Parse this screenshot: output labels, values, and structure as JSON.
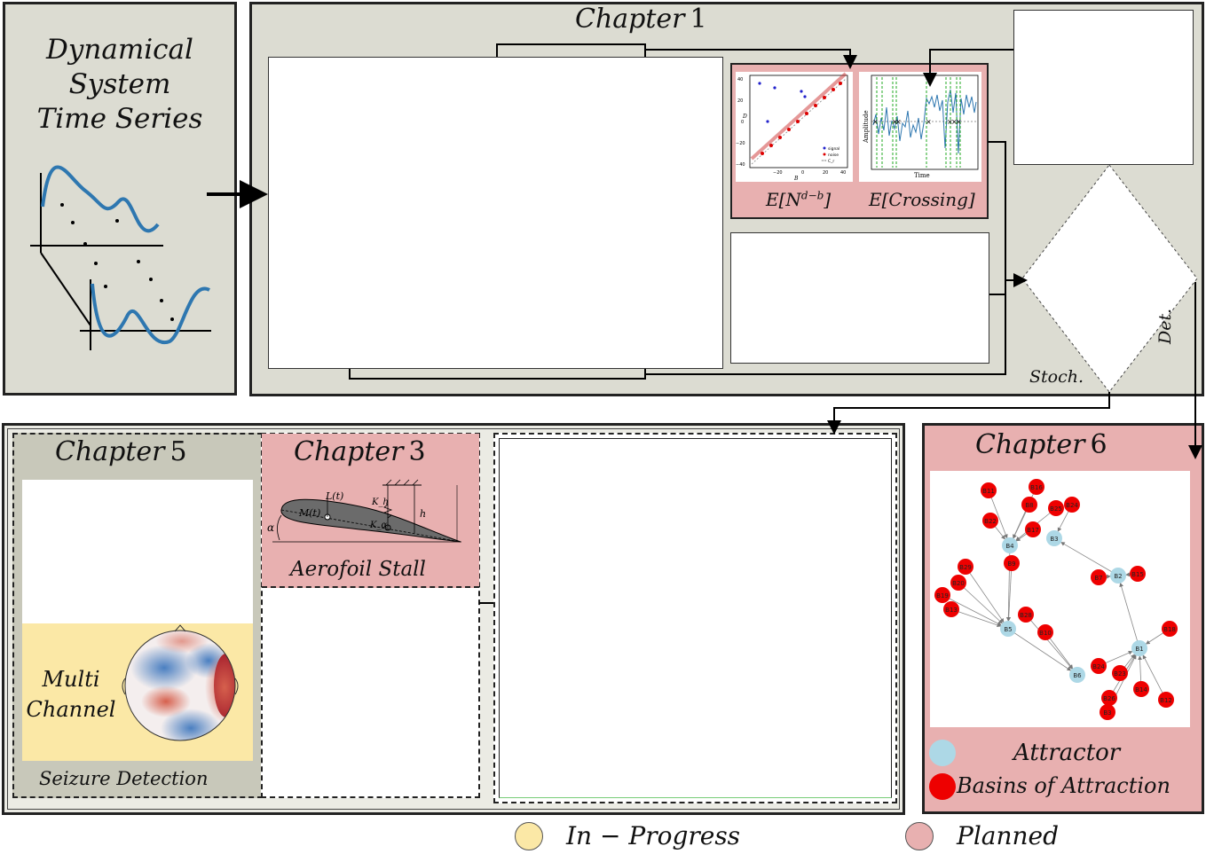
{
  "intro": {
    "title_lines": [
      "Dynamical",
      "System",
      "Time Series"
    ]
  },
  "chapter1": {
    "title": "Chapter",
    "number": "1",
    "metric_a_label": "E[N^{d-b}]",
    "metric_a_text": "E[N",
    "metric_a_sup": "d−b",
    "metric_a_close": "]",
    "metric_b_label": "E[Crossing]",
    "scatter_xlabel": "B",
    "scatter_ylabel": "D",
    "scatter_legend": [
      "signal",
      "noise",
      "C_r"
    ],
    "ts_ylabel": "Amplitude",
    "ts_xlabel": "Time",
    "branch_stoch": "Stoch.",
    "branch_det": "Det."
  },
  "chapter5": {
    "title": "Chapter",
    "number": "5",
    "multi_lines": [
      "Multi",
      "Channel"
    ],
    "caption": "Seizure Detection"
  },
  "chapter3": {
    "title": "Chapter",
    "number": "3",
    "caption": "Aerofoil Stall",
    "labels": {
      "lift": "L(t)",
      "moment": "M(t)",
      "kh": "K_h",
      "ka": "K_α",
      "h": "h",
      "alpha": "α"
    }
  },
  "chapter6": {
    "title": "Chapter",
    "number": "6",
    "legend_attractor": "Attractor",
    "legend_basins": "Basins of Attraction",
    "attractor_nodes": [
      "B1",
      "B2",
      "B3",
      "B4",
      "B5",
      "B6"
    ],
    "basin_nodes": [
      "B11",
      "B16",
      "B8",
      "B25",
      "B24",
      "B22",
      "B17",
      "B7",
      "B15",
      "B29",
      "B20",
      "B19",
      "B13",
      "B28",
      "B10",
      "B18",
      "B24",
      "B23",
      "B14",
      "B26",
      "B3",
      "B12",
      "B9"
    ]
  },
  "legend": {
    "in_progress": "In − Progress",
    "planned": "Planned"
  },
  "colors": {
    "gray_panel": "#dcdcd2",
    "planned_pink": "#e8b0b0",
    "in_progress_yellow": "#fbe8a6",
    "attractor_blue": "#add8e6",
    "basin_red": "#ee0000",
    "series_blue": "#2e77b0"
  }
}
